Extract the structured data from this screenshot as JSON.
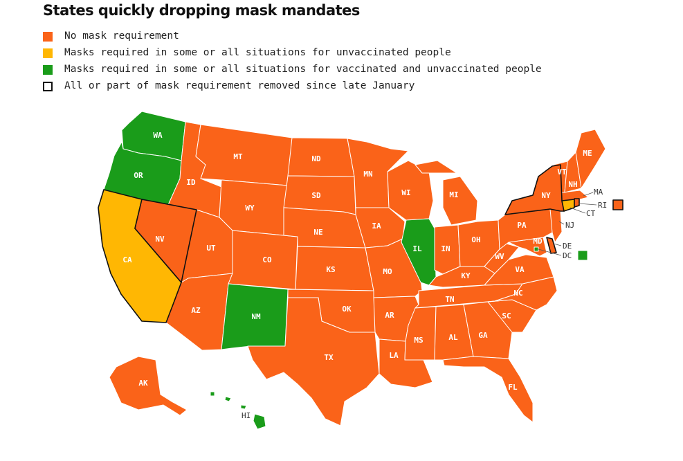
{
  "title": "States quickly dropping mask mandates",
  "colors": {
    "none": "#fa6319",
    "unvax": "#ffb703",
    "all": "#1a9c1a",
    "outline": "#111111"
  },
  "legend": [
    {
      "key": "none",
      "label": "No mask requirement"
    },
    {
      "key": "unvax",
      "label": "Masks required in some or all situations for unvaccinated people"
    },
    {
      "key": "all",
      "label": "Masks required in some or all situations for vaccinated and unvaccinated people"
    },
    {
      "key": "outline",
      "label": "All or part of mask requirement removed since late January"
    }
  ],
  "states": [
    {
      "abbr": "WA",
      "status": "all",
      "removed": false
    },
    {
      "abbr": "OR",
      "status": "all",
      "removed": false
    },
    {
      "abbr": "CA",
      "status": "unvax",
      "removed": true
    },
    {
      "abbr": "NV",
      "status": "none",
      "removed": true
    },
    {
      "abbr": "ID",
      "status": "none",
      "removed": false
    },
    {
      "abbr": "MT",
      "status": "none",
      "removed": false
    },
    {
      "abbr": "WY",
      "status": "none",
      "removed": false
    },
    {
      "abbr": "UT",
      "status": "none",
      "removed": false
    },
    {
      "abbr": "AZ",
      "status": "none",
      "removed": false
    },
    {
      "abbr": "CO",
      "status": "none",
      "removed": false
    },
    {
      "abbr": "NM",
      "status": "all",
      "removed": false
    },
    {
      "abbr": "ND",
      "status": "none",
      "removed": false
    },
    {
      "abbr": "SD",
      "status": "none",
      "removed": false
    },
    {
      "abbr": "NE",
      "status": "none",
      "removed": false
    },
    {
      "abbr": "KS",
      "status": "none",
      "removed": false
    },
    {
      "abbr": "OK",
      "status": "none",
      "removed": false
    },
    {
      "abbr": "TX",
      "status": "none",
      "removed": false
    },
    {
      "abbr": "MN",
      "status": "none",
      "removed": false
    },
    {
      "abbr": "IA",
      "status": "none",
      "removed": false
    },
    {
      "abbr": "MO",
      "status": "none",
      "removed": false
    },
    {
      "abbr": "AR",
      "status": "none",
      "removed": false
    },
    {
      "abbr": "LA",
      "status": "none",
      "removed": false
    },
    {
      "abbr": "WI",
      "status": "none",
      "removed": false
    },
    {
      "abbr": "IL",
      "status": "all",
      "removed": false
    },
    {
      "abbr": "MI",
      "status": "none",
      "removed": false
    },
    {
      "abbr": "IN",
      "status": "none",
      "removed": false
    },
    {
      "abbr": "OH",
      "status": "none",
      "removed": false
    },
    {
      "abbr": "KY",
      "status": "none",
      "removed": false
    },
    {
      "abbr": "TN",
      "status": "none",
      "removed": false
    },
    {
      "abbr": "MS",
      "status": "none",
      "removed": false
    },
    {
      "abbr": "AL",
      "status": "none",
      "removed": false
    },
    {
      "abbr": "GA",
      "status": "none",
      "removed": false
    },
    {
      "abbr": "FL",
      "status": "none",
      "removed": false
    },
    {
      "abbr": "SC",
      "status": "none",
      "removed": false
    },
    {
      "abbr": "NC",
      "status": "none",
      "removed": false
    },
    {
      "abbr": "VA",
      "status": "none",
      "removed": false
    },
    {
      "abbr": "WV",
      "status": "none",
      "removed": false
    },
    {
      "abbr": "MD",
      "status": "none",
      "removed": false
    },
    {
      "abbr": "DE",
      "status": "none",
      "removed": true
    },
    {
      "abbr": "DC",
      "status": "all",
      "removed": false
    },
    {
      "abbr": "PA",
      "status": "none",
      "removed": false
    },
    {
      "abbr": "NJ",
      "status": "none",
      "removed": false
    },
    {
      "abbr": "NY",
      "status": "none",
      "removed": true
    },
    {
      "abbr": "CT",
      "status": "unvax",
      "removed": true
    },
    {
      "abbr": "RI",
      "status": "none",
      "removed": true
    },
    {
      "abbr": "MA",
      "status": "none",
      "removed": false
    },
    {
      "abbr": "VT",
      "status": "none",
      "removed": false
    },
    {
      "abbr": "NH",
      "status": "none",
      "removed": false
    },
    {
      "abbr": "ME",
      "status": "none",
      "removed": false
    },
    {
      "abbr": "AK",
      "status": "none",
      "removed": false
    },
    {
      "abbr": "HI",
      "status": "all",
      "removed": false
    }
  ]
}
